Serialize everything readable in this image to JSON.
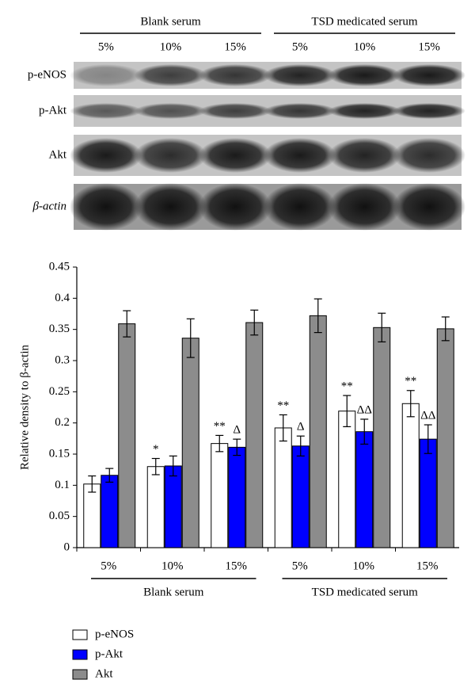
{
  "blot": {
    "groups": [
      "Blank serum",
      "TSD medicated serum"
    ],
    "lanes": [
      "5%",
      "10%",
      "15%",
      "5%",
      "10%",
      "15%"
    ],
    "rows": [
      "p-eNOS",
      "p-Akt",
      "Akt",
      "β-actin"
    ]
  },
  "chart_data": {
    "type": "bar",
    "ylabel": "Relative density to β-actin",
    "categories": [
      "5%",
      "10%",
      "15%",
      "5%",
      "10%",
      "15%"
    ],
    "groups": [
      "Blank serum",
      "TSD medicated serum"
    ],
    "ylim": [
      0,
      0.45
    ],
    "yticks": [
      0,
      0.05,
      0.1,
      0.15,
      0.2,
      0.25,
      0.3,
      0.35,
      0.4,
      0.45
    ],
    "series": [
      {
        "name": "p-eNOS",
        "color": "#ffffff",
        "values": [
          0.102,
          0.13,
          0.167,
          0.192,
          0.219,
          0.231
        ],
        "errors": [
          0.013,
          0.013,
          0.013,
          0.021,
          0.025,
          0.021
        ],
        "annotations": [
          null,
          "*",
          "**",
          "**",
          "**",
          "**"
        ]
      },
      {
        "name": "p-Akt",
        "color": "#0000ff",
        "values": [
          0.116,
          0.131,
          0.161,
          0.163,
          0.186,
          0.174
        ],
        "errors": [
          0.011,
          0.016,
          0.013,
          0.016,
          0.02,
          0.023
        ],
        "annotations": [
          null,
          null,
          "Δ",
          "Δ",
          "ΔΔ",
          "ΔΔ"
        ]
      },
      {
        "name": "Akt",
        "color": "#8c8c8c",
        "values": [
          0.359,
          0.336,
          0.361,
          0.372,
          0.353,
          0.351
        ],
        "errors": [
          0.021,
          0.031,
          0.02,
          0.027,
          0.023,
          0.019
        ],
        "annotations": [
          null,
          null,
          null,
          null,
          null,
          null
        ]
      }
    ]
  }
}
